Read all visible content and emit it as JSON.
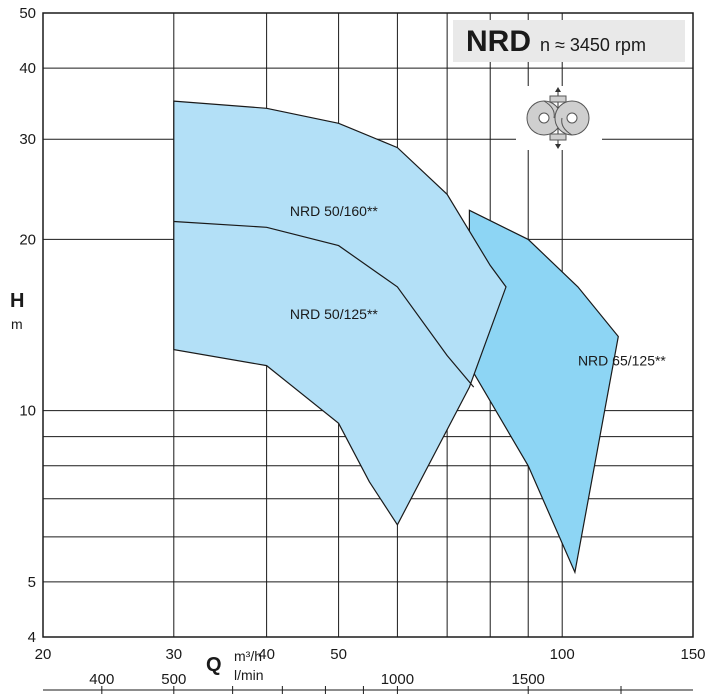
{
  "chart_data": {
    "type": "area",
    "title": "NRD",
    "subtitle": "n ≈ 3450 rpm",
    "xlabel": "Q",
    "x_unit": "m³/h",
    "x2_unit": "l/min",
    "ylabel": "H",
    "y_unit": "m",
    "x_scale": "log",
    "y_scale": "log",
    "xlim": [
      20,
      150
    ],
    "ylim": [
      4,
      50
    ],
    "x_ticks": [
      20,
      30,
      40,
      50,
      100,
      150
    ],
    "x_tick_labels": [
      "20",
      "30",
      "40",
      "50",
      "100",
      "150"
    ],
    "x2_ticks": [
      400,
      500,
      1000,
      1500
    ],
    "x2_tick_labels": [
      "400",
      "500",
      "1000",
      "1500"
    ],
    "y_ticks": [
      4,
      5,
      10,
      20,
      30,
      40,
      50
    ],
    "y_tick_labels": [
      "4",
      "5",
      "10",
      "20",
      "30",
      "40",
      "50"
    ],
    "grid": true,
    "fill_colors": [
      "#b3e0f7",
      "#8dd5f4"
    ],
    "icon": "twin-impeller-pump-icon",
    "regions": [
      {
        "label": "NRD 50/160**",
        "upper": [
          [
            30,
            35
          ],
          [
            40,
            34
          ],
          [
            50,
            32
          ],
          [
            60,
            29
          ],
          [
            70,
            24
          ],
          [
            80,
            18
          ],
          [
            84,
            16.5
          ]
        ],
        "lower": [
          [
            84,
            16.5
          ],
          [
            75,
            11
          ],
          [
            60,
            6.3
          ],
          [
            55,
            7.5
          ],
          [
            50,
            9.5
          ],
          [
            40,
            12
          ],
          [
            30,
            12.8
          ]
        ]
      },
      {
        "label": "NRD 50/125**",
        "upper": [
          [
            30,
            21.5
          ],
          [
            40,
            21
          ],
          [
            50,
            19.5
          ],
          [
            60,
            16.5
          ],
          [
            70,
            12.5
          ],
          [
            76,
            11
          ]
        ],
        "lower": []
      },
      {
        "label": "NRD 65/125**",
        "upper": [
          [
            75,
            22.5
          ],
          [
            90,
            20
          ],
          [
            105,
            16.5
          ],
          [
            119,
            13.5
          ]
        ],
        "lower": [
          [
            119,
            13.5
          ],
          [
            104,
            5.2
          ],
          [
            90,
            8
          ],
          [
            75,
            12
          ]
        ]
      }
    ]
  }
}
